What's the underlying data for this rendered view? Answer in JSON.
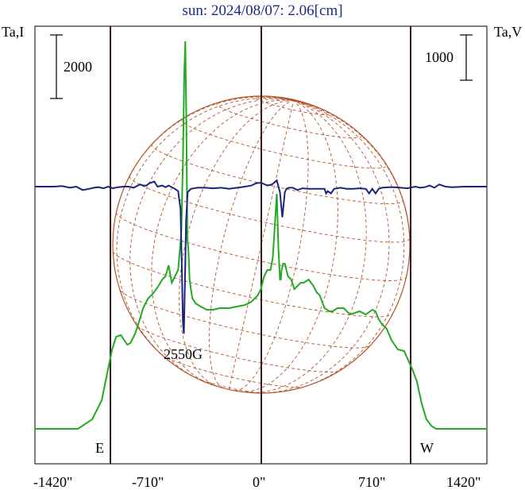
{
  "title": "sun: 2024/08/07: 2.06[cm]",
  "chart_data": {
    "type": "line",
    "xlabel_ticks": [
      "-1420\"",
      "-710\"",
      "0\"",
      "710\"",
      "1420\""
    ],
    "xlim": [
      -1420,
      1420
    ],
    "left_axis_label": "Ta,I",
    "right_axis_label": "Ta,V",
    "left_scale_bar": "2000",
    "right_scale_bar": "1000",
    "limb_labels": {
      "east": "E",
      "west": "W"
    },
    "annotation": "2550G",
    "colors": {
      "intensity": "#22aa22",
      "polarization": "#1a237e",
      "disk": "#b5532a",
      "limb_lines": "#3a1a1a",
      "title": "#1a2a8a"
    },
    "series": [
      {
        "key": "intensity",
        "x": [
          -1420,
          -1300,
          -1150,
          -1060,
          -1000,
          -960,
          -935,
          -910,
          -880,
          -860,
          -840,
          -820,
          -790,
          -770,
          -740,
          -710,
          -680,
          -650,
          -620,
          -600,
          -580,
          -560,
          -540,
          -520,
          -500,
          -490,
          -482,
          -475,
          -468,
          -462,
          -455,
          -448,
          -440,
          -430,
          -410,
          -380,
          -340,
          -300,
          -260,
          -200,
          -100,
          -60,
          -20,
          0,
          20,
          40,
          60,
          75,
          85,
          100,
          110,
          120,
          125,
          130,
          140,
          150,
          170,
          190,
          210,
          230,
          250,
          270,
          300,
          330,
          350,
          370,
          400,
          430,
          450,
          480,
          520,
          560,
          620,
          660,
          700,
          720,
          740,
          760,
          790,
          820,
          860,
          900,
          940,
          950,
          980,
          1010,
          1040,
          1070,
          1100,
          1200,
          1300,
          1420
        ],
        "y": [
          0,
          0,
          0,
          30,
          90,
          190,
          250,
          290,
          295,
          280,
          265,
          270,
          300,
          330,
          380,
          410,
          425,
          445,
          470,
          480,
          515,
          460,
          480,
          500,
          620,
          840,
          1110,
          1220,
          950,
          600,
          560,
          470,
          440,
          410,
          395,
          385,
          375,
          375,
          380,
          380,
          390,
          400,
          420,
          440,
          480,
          500,
          500,
          540,
          620,
          740,
          570,
          470,
          470,
          500,
          520,
          520,
          480,
          470,
          440,
          450,
          460,
          460,
          470,
          450,
          430,
          420,
          380,
          370,
          370,
          380,
          380,
          360,
          370,
          360,
          375,
          370,
          345,
          330,
          315,
          280,
          250,
          245,
          200,
          190,
          150,
          80,
          30,
          10,
          0,
          0,
          0,
          0
        ]
      },
      {
        "key": "polarization",
        "x": [
          -1420,
          -1350,
          -1300,
          -1250,
          -1200,
          -1160,
          -1120,
          -1080,
          -1050,
          -1020,
          -990,
          -960,
          -930,
          -900,
          -860,
          -830,
          -800,
          -760,
          -740,
          -720,
          -700,
          -670,
          -650,
          -620,
          -600,
          -580,
          -560,
          -540,
          -520,
          -505,
          -497,
          -490,
          -484,
          -478,
          -470,
          -460,
          -440,
          -400,
          -350,
          -300,
          -250,
          -200,
          -150,
          -100,
          -60,
          -30,
          0,
          40,
          70,
          100,
          120,
          130,
          135,
          140,
          150,
          160,
          175,
          200,
          230,
          260,
          300,
          350,
          400,
          410,
          420,
          440,
          460,
          500,
          540,
          580,
          620,
          660,
          680,
          700,
          720,
          740,
          760,
          800,
          840,
          880,
          920,
          970,
          1000,
          1030,
          1060,
          1090,
          1120,
          1160,
          1200,
          1280,
          1350,
          1420
        ],
        "y": [
          0,
          0,
          0,
          5,
          -10,
          0,
          -30,
          -20,
          -10,
          -5,
          -15,
          0,
          -15,
          -5,
          0,
          0,
          -10,
          20,
          10,
          10,
          30,
          45,
          0,
          10,
          -5,
          10,
          -5,
          -20,
          -40,
          -200,
          -700,
          -1200,
          -1300,
          -900,
          -300,
          -50,
          -20,
          -10,
          -10,
          -15,
          -10,
          -20,
          -10,
          0,
          10,
          30,
          35,
          10,
          20,
          55,
          -50,
          -200,
          -270,
          -200,
          -50,
          -20,
          -10,
          -10,
          -30,
          -15,
          -20,
          -20,
          -20,
          -60,
          -40,
          -60,
          -20,
          -10,
          -20,
          -20,
          -15,
          -20,
          -60,
          -20,
          -60,
          -20,
          -10,
          -5,
          -5,
          -10,
          -15,
          0,
          -10,
          -5,
          10,
          -10,
          20,
          0,
          -5,
          0,
          0,
          0
        ]
      }
    ]
  }
}
